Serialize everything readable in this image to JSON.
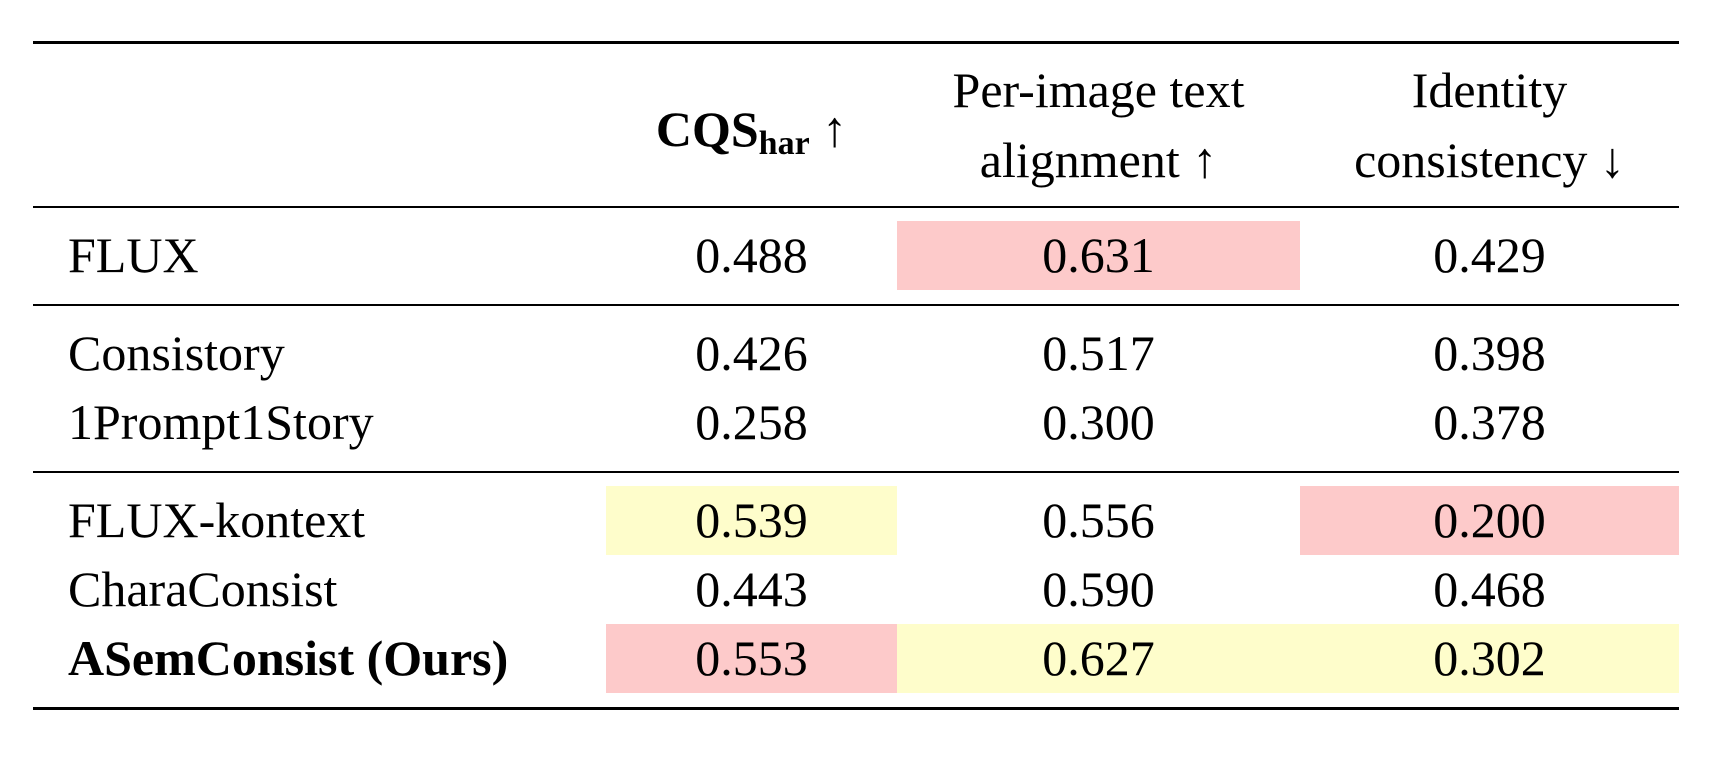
{
  "header": {
    "columns": [
      {
        "main": "CQS",
        "sub": "har",
        "arrow": "↑"
      },
      {
        "lines": [
          "Per-image text",
          "alignment ↑"
        ]
      },
      {
        "lines": [
          "Identity",
          "consistency ↓"
        ]
      }
    ]
  },
  "highlight_colors": {
    "red": "#fdcaca",
    "yellow": "#fefdcb"
  },
  "groups": [
    {
      "rows": [
        {
          "name": "FLUX",
          "cells": [
            {
              "text": "0.488"
            },
            {
              "text": "0.631",
              "highlight": "red"
            },
            {
              "text": "0.429"
            }
          ]
        }
      ]
    },
    {
      "rows": [
        {
          "name": "Consistory",
          "cells": [
            {
              "text": "0.426"
            },
            {
              "text": "0.517"
            },
            {
              "text": "0.398"
            }
          ]
        },
        {
          "name": "1Prompt1Story",
          "cells": [
            {
              "text": "0.258"
            },
            {
              "text": "0.300"
            },
            {
              "text": "0.378"
            }
          ]
        }
      ]
    },
    {
      "rows": [
        {
          "name": "FLUX-kontext",
          "cells": [
            {
              "text": "0.539",
              "highlight": "yellow"
            },
            {
              "text": "0.556"
            },
            {
              "text": "0.200",
              "highlight": "red"
            }
          ]
        },
        {
          "name": "CharaConsist",
          "cells": [
            {
              "text": "0.443"
            },
            {
              "text": "0.590"
            },
            {
              "text": "0.468"
            }
          ]
        },
        {
          "name": "ASemConsist (Ours)",
          "bold": true,
          "cells": [
            {
              "text": "0.553",
              "highlight": "red"
            },
            {
              "text": "0.627",
              "highlight": "yellow"
            },
            {
              "text": "0.302",
              "highlight": "yellow"
            }
          ]
        }
      ]
    }
  ]
}
